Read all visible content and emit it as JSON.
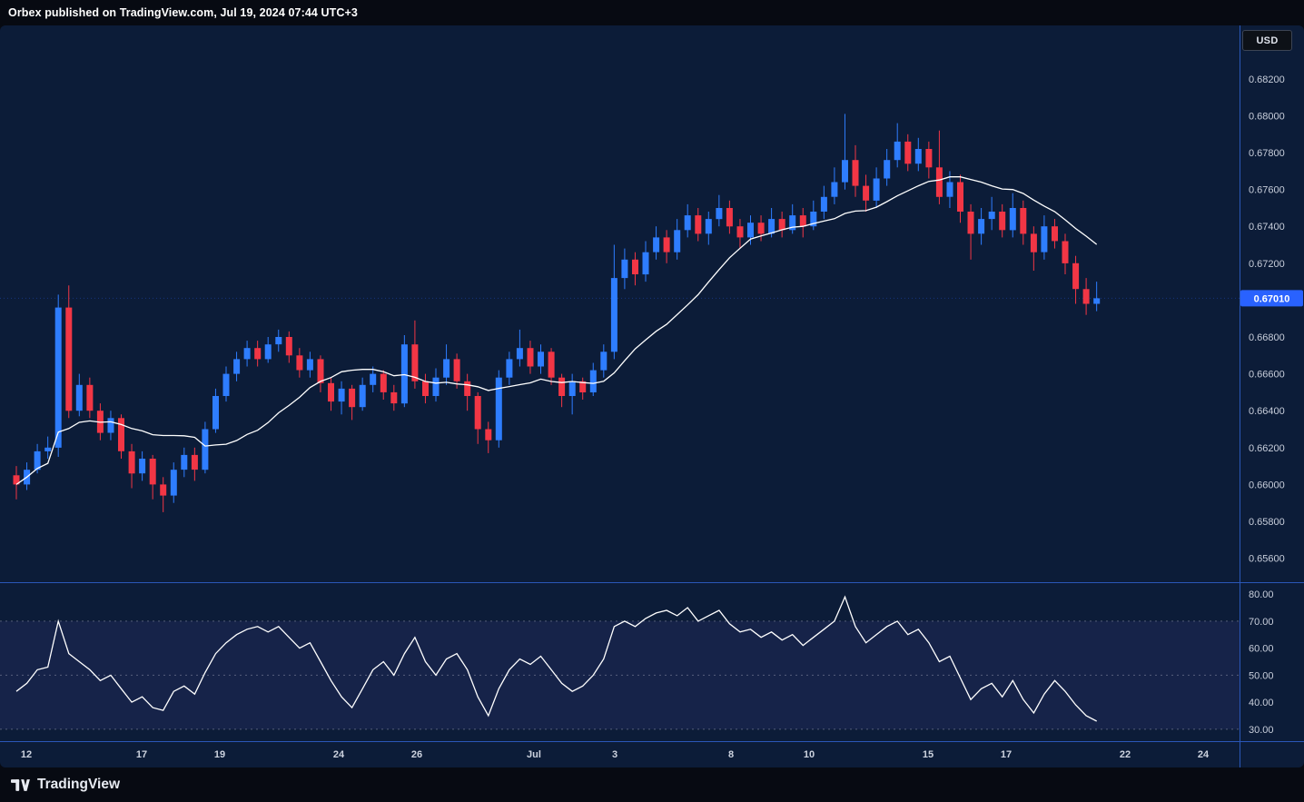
{
  "header": {
    "title": "Orbex published on TradingView.com, Jul 19, 2024 07:44 UTC+3"
  },
  "toolbar": {
    "currency_label": "USD"
  },
  "footer": {
    "brand": "TradingView"
  },
  "chart_data": {
    "type": "candlestick",
    "panes": [
      "price-with-sma",
      "rsi"
    ],
    "last_price_label": "0.67010",
    "last_price": 0.6701,
    "colors": {
      "background": "#0c1c38",
      "frame": "#070a12",
      "up": "#2e7dff",
      "down": "#f23645",
      "ma": "#ffffff",
      "rsi_line": "#ffffff",
      "separator": "#2a57b8",
      "price_label_bg": "#2962ff",
      "axis_text": "#c8cedb",
      "band_fill": "rgba(116,98,224,0.10)",
      "level_dash": "rgba(149,158,176,0.5)"
    },
    "price_axis": {
      "min": 0.6547,
      "max": 0.6849,
      "ticks": [
        0.682,
        0.68,
        0.678,
        0.676,
        0.674,
        0.672,
        0.668,
        0.666,
        0.664,
        0.662,
        0.66,
        0.658,
        0.656
      ]
    },
    "ma": {
      "type": "sma",
      "period": 14
    },
    "candles": [
      [
        0.6605,
        0.661,
        0.6592,
        0.66
      ],
      [
        0.66,
        0.6612,
        0.6597,
        0.6608
      ],
      [
        0.6608,
        0.6622,
        0.6606,
        0.6618
      ],
      [
        0.6618,
        0.6626,
        0.6614,
        0.662
      ],
      [
        0.662,
        0.6703,
        0.6615,
        0.6696
      ],
      [
        0.6696,
        0.6708,
        0.6636,
        0.664
      ],
      [
        0.664,
        0.666,
        0.6637,
        0.6654
      ],
      [
        0.6654,
        0.6658,
        0.6636,
        0.664
      ],
      [
        0.664,
        0.6644,
        0.6624,
        0.6628
      ],
      [
        0.6628,
        0.664,
        0.6624,
        0.6636
      ],
      [
        0.6636,
        0.6638,
        0.6614,
        0.6618
      ],
      [
        0.6618,
        0.6622,
        0.6598,
        0.6606
      ],
      [
        0.6606,
        0.6618,
        0.6602,
        0.6614
      ],
      [
        0.6614,
        0.6616,
        0.6592,
        0.66
      ],
      [
        0.66,
        0.6604,
        0.6585,
        0.6594
      ],
      [
        0.6594,
        0.6612,
        0.659,
        0.6608
      ],
      [
        0.6608,
        0.662,
        0.6604,
        0.6616
      ],
      [
        0.6616,
        0.662,
        0.6602,
        0.6608
      ],
      [
        0.6608,
        0.6634,
        0.6606,
        0.663
      ],
      [
        0.663,
        0.6652,
        0.6628,
        0.6648
      ],
      [
        0.6648,
        0.6664,
        0.6645,
        0.666
      ],
      [
        0.666,
        0.6672,
        0.6656,
        0.6668
      ],
      [
        0.6668,
        0.6678,
        0.6664,
        0.6674
      ],
      [
        0.6674,
        0.6678,
        0.6664,
        0.6668
      ],
      [
        0.6668,
        0.668,
        0.6666,
        0.6676
      ],
      [
        0.6676,
        0.6684,
        0.6672,
        0.668
      ],
      [
        0.668,
        0.6683,
        0.6666,
        0.667
      ],
      [
        0.667,
        0.6674,
        0.6658,
        0.6662
      ],
      [
        0.6662,
        0.6672,
        0.6658,
        0.6668
      ],
      [
        0.6668,
        0.667,
        0.665,
        0.6655
      ],
      [
        0.6655,
        0.6658,
        0.664,
        0.6645
      ],
      [
        0.6645,
        0.6656,
        0.6638,
        0.6652
      ],
      [
        0.6652,
        0.6654,
        0.6635,
        0.6642
      ],
      [
        0.6642,
        0.6658,
        0.664,
        0.6654
      ],
      [
        0.6654,
        0.6664,
        0.665,
        0.666
      ],
      [
        0.666,
        0.6662,
        0.6646,
        0.665
      ],
      [
        0.665,
        0.6654,
        0.664,
        0.6644
      ],
      [
        0.6644,
        0.6681,
        0.6642,
        0.6676
      ],
      [
        0.6676,
        0.6689,
        0.6652,
        0.6656
      ],
      [
        0.6656,
        0.666,
        0.6644,
        0.6648
      ],
      [
        0.6648,
        0.6663,
        0.6645,
        0.6658
      ],
      [
        0.6658,
        0.6676,
        0.6654,
        0.6668
      ],
      [
        0.6668,
        0.6671,
        0.6652,
        0.6656
      ],
      [
        0.6656,
        0.666,
        0.664,
        0.6648
      ],
      [
        0.6648,
        0.665,
        0.6622,
        0.663
      ],
      [
        0.663,
        0.6634,
        0.6617,
        0.6624
      ],
      [
        0.6624,
        0.6662,
        0.662,
        0.6658
      ],
      [
        0.6658,
        0.6672,
        0.6654,
        0.6668
      ],
      [
        0.6668,
        0.6684,
        0.6664,
        0.6674
      ],
      [
        0.6674,
        0.6678,
        0.666,
        0.6664
      ],
      [
        0.6664,
        0.6676,
        0.666,
        0.6672
      ],
      [
        0.6672,
        0.6674,
        0.6654,
        0.6658
      ],
      [
        0.6658,
        0.666,
        0.6642,
        0.6648
      ],
      [
        0.6648,
        0.666,
        0.6638,
        0.6656
      ],
      [
        0.6656,
        0.6658,
        0.6646,
        0.665
      ],
      [
        0.665,
        0.6666,
        0.6648,
        0.6662
      ],
      [
        0.6662,
        0.6676,
        0.6658,
        0.6672
      ],
      [
        0.6672,
        0.673,
        0.6668,
        0.6712
      ],
      [
        0.6712,
        0.6728,
        0.6706,
        0.6722
      ],
      [
        0.6722,
        0.6726,
        0.6708,
        0.6714
      ],
      [
        0.6714,
        0.6732,
        0.671,
        0.6726
      ],
      [
        0.6726,
        0.674,
        0.6722,
        0.6734
      ],
      [
        0.6734,
        0.6738,
        0.672,
        0.6726
      ],
      [
        0.6726,
        0.6744,
        0.6722,
        0.6738
      ],
      [
        0.6738,
        0.6752,
        0.6734,
        0.6746
      ],
      [
        0.6746,
        0.675,
        0.6732,
        0.6736
      ],
      [
        0.6736,
        0.6748,
        0.673,
        0.6744
      ],
      [
        0.6744,
        0.6757,
        0.674,
        0.675
      ],
      [
        0.675,
        0.6754,
        0.6736,
        0.674
      ],
      [
        0.674,
        0.6744,
        0.6728,
        0.6734
      ],
      [
        0.6734,
        0.6746,
        0.673,
        0.6742
      ],
      [
        0.6742,
        0.6746,
        0.6732,
        0.6736
      ],
      [
        0.6736,
        0.675,
        0.6734,
        0.6744
      ],
      [
        0.6744,
        0.6748,
        0.6734,
        0.6738
      ],
      [
        0.6738,
        0.6752,
        0.6736,
        0.6746
      ],
      [
        0.6746,
        0.675,
        0.6734,
        0.674
      ],
      [
        0.674,
        0.6754,
        0.6738,
        0.6748
      ],
      [
        0.6748,
        0.6762,
        0.6744,
        0.6756
      ],
      [
        0.6756,
        0.6772,
        0.6752,
        0.6764
      ],
      [
        0.6764,
        0.6801,
        0.676,
        0.6776
      ],
      [
        0.6776,
        0.6784,
        0.6756,
        0.6762
      ],
      [
        0.6762,
        0.6768,
        0.6748,
        0.6754
      ],
      [
        0.6754,
        0.6772,
        0.675,
        0.6766
      ],
      [
        0.6766,
        0.6782,
        0.6762,
        0.6776
      ],
      [
        0.6776,
        0.6796,
        0.6772,
        0.6786
      ],
      [
        0.6786,
        0.679,
        0.677,
        0.6774
      ],
      [
        0.6774,
        0.6788,
        0.677,
        0.6782
      ],
      [
        0.6782,
        0.6786,
        0.6766,
        0.6772
      ],
      [
        0.6772,
        0.6792,
        0.6752,
        0.6756
      ],
      [
        0.6756,
        0.677,
        0.675,
        0.6764
      ],
      [
        0.6764,
        0.6768,
        0.6742,
        0.6748
      ],
      [
        0.6748,
        0.6752,
        0.6722,
        0.6736
      ],
      [
        0.6736,
        0.675,
        0.673,
        0.6744
      ],
      [
        0.6744,
        0.6756,
        0.6738,
        0.6748
      ],
      [
        0.6748,
        0.6752,
        0.6734,
        0.6738
      ],
      [
        0.6738,
        0.6758,
        0.6734,
        0.675
      ],
      [
        0.675,
        0.6754,
        0.673,
        0.6736
      ],
      [
        0.6736,
        0.674,
        0.6716,
        0.6726
      ],
      [
        0.6726,
        0.6746,
        0.6722,
        0.674
      ],
      [
        0.674,
        0.6744,
        0.6728,
        0.6732
      ],
      [
        0.6732,
        0.6736,
        0.6714,
        0.672
      ],
      [
        0.672,
        0.6724,
        0.6698,
        0.6706
      ],
      [
        0.6706,
        0.6712,
        0.6692,
        0.6698
      ],
      [
        0.6698,
        0.671,
        0.6694,
        0.6701
      ]
    ],
    "rsi": {
      "values": [
        44,
        47,
        52,
        53,
        70,
        58,
        55,
        52,
        48,
        50,
        45,
        40,
        42,
        38,
        37,
        44,
        46,
        43,
        51,
        58,
        62,
        65,
        67,
        68,
        66,
        68,
        64,
        60,
        62,
        55,
        48,
        42,
        38,
        45,
        52,
        55,
        50,
        58,
        64,
        55,
        50,
        56,
        58,
        52,
        42,
        35,
        45,
        52,
        56,
        54,
        57,
        52,
        47,
        44,
        46,
        50,
        56,
        68,
        70,
        68,
        71,
        73,
        74,
        72,
        75,
        70,
        72,
        74,
        69,
        66,
        67,
        64,
        66,
        63,
        65,
        61,
        64,
        67,
        70,
        79,
        68,
        62,
        65,
        68,
        70,
        65,
        67,
        62,
        55,
        57,
        49,
        41,
        45,
        47,
        42,
        48,
        41,
        36,
        43,
        48,
        44,
        39,
        35,
        33
      ],
      "levels": [
        70,
        50,
        30
      ],
      "axis_ticks": [
        80,
        70,
        60,
        50,
        40,
        30
      ],
      "scale_max": 84.4,
      "scale_min": 25.6
    },
    "time_axis": {
      "labels": [
        {
          "text": "12",
          "pos": 0.021
        },
        {
          "text": "17",
          "pos": 0.114
        },
        {
          "text": "19",
          "pos": 0.177
        },
        {
          "text": "24",
          "pos": 0.273
        },
        {
          "text": "26",
          "pos": 0.336
        },
        {
          "text": "Jul",
          "pos": 0.431
        },
        {
          "text": "3",
          "pos": 0.496
        },
        {
          "text": "8",
          "pos": 0.59
        },
        {
          "text": "10",
          "pos": 0.653
        },
        {
          "text": "15",
          "pos": 0.749
        },
        {
          "text": "17",
          "pos": 0.812
        },
        {
          "text": "22",
          "pos": 0.908
        },
        {
          "text": "24",
          "pos": 0.971
        }
      ]
    }
  }
}
